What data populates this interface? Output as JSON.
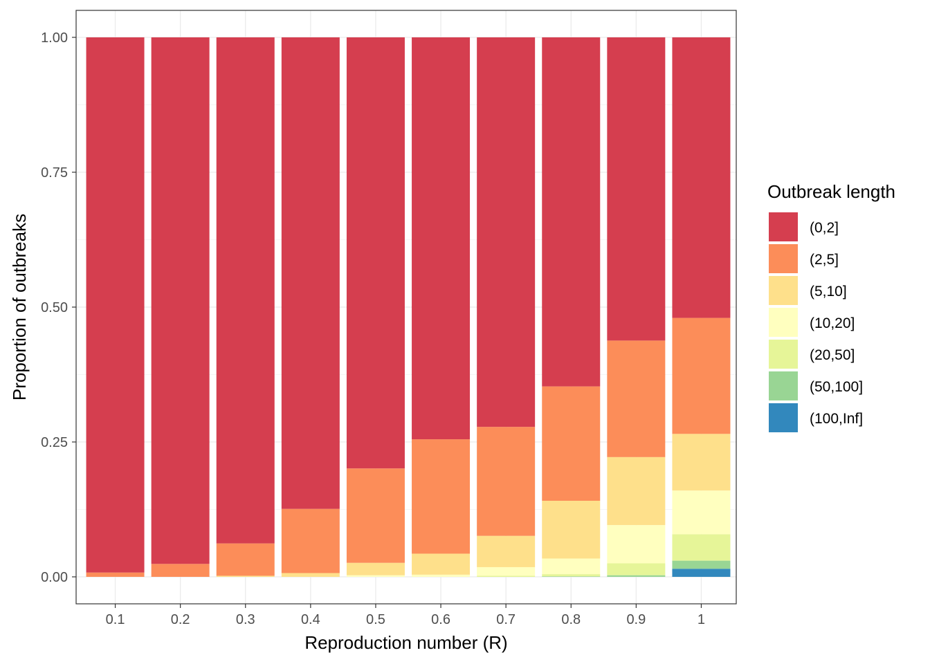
{
  "chart_data": {
    "type": "bar",
    "stacked": true,
    "xlabel": "Reproduction number (R)",
    "ylabel": "Proportion of outbreaks",
    "categories": [
      "0.1",
      "0.2",
      "0.3",
      "0.4",
      "0.5",
      "0.6",
      "0.7",
      "0.8",
      "0.9",
      "1"
    ],
    "yticks": [
      "0.00",
      "0.25",
      "0.50",
      "0.75",
      "1.00"
    ],
    "ylim": [
      0,
      1.05
    ],
    "grid": true,
    "legend": {
      "title": "Outbreak length",
      "placement": "right"
    },
    "series": [
      {
        "name": "(0,2]",
        "color": "#D53E4F",
        "values": [
          0.992,
          0.976,
          0.938,
          0.874,
          0.799,
          0.745,
          0.722,
          0.647,
          0.562,
          0.52
        ]
      },
      {
        "name": "(2,5]",
        "color": "#FC8D59",
        "values": [
          0.008,
          0.024,
          0.06,
          0.119,
          0.175,
          0.212,
          0.202,
          0.212,
          0.216,
          0.215
        ]
      },
      {
        "name": "(5,10]",
        "color": "#FEE08B",
        "values": [
          0.0,
          0.0,
          0.002,
          0.007,
          0.023,
          0.039,
          0.058,
          0.107,
          0.126,
          0.105
        ]
      },
      {
        "name": "(10,20]",
        "color": "#FFFFBF",
        "values": [
          0.0,
          0.0,
          0.0,
          0.0,
          0.003,
          0.004,
          0.016,
          0.029,
          0.071,
          0.081
        ]
      },
      {
        "name": "(20,50]",
        "color": "#E6F598",
        "values": [
          0.0,
          0.0,
          0.0,
          0.0,
          0.0,
          0.0,
          0.002,
          0.004,
          0.022,
          0.049
        ]
      },
      {
        "name": "(50,100]",
        "color": "#99D594",
        "values": [
          0.0,
          0.0,
          0.0,
          0.0,
          0.0,
          0.0,
          0.0,
          0.001,
          0.003,
          0.015
        ]
      },
      {
        "name": "(100,Inf]",
        "color": "#3288BD",
        "values": [
          0.0,
          0.0,
          0.0,
          0.0,
          0.0,
          0.0,
          0.0,
          0.0,
          0.0,
          0.015
        ]
      }
    ]
  }
}
